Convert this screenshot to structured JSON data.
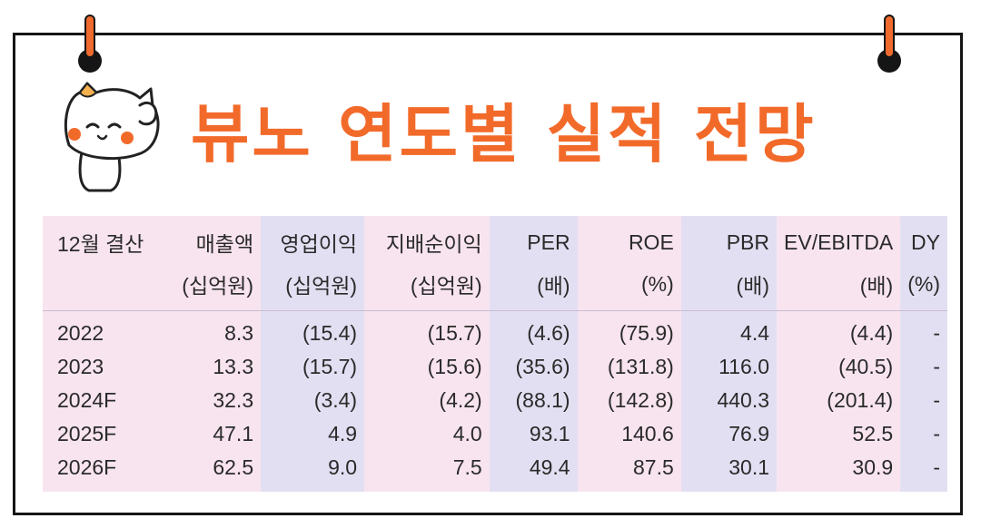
{
  "title": "뷰노 연도별 실적 전망",
  "table": {
    "header_top": [
      "12월 결산",
      "매출액",
      "영업이익",
      "지배순이익",
      "PER",
      "ROE",
      "PBR",
      "EV/EBITDA",
      "DY"
    ],
    "header_bottom": [
      "",
      "(십억원)",
      "(십억원)",
      "(십억원)",
      "(배)",
      "(%)",
      "(배)",
      "(배)",
      "(%)"
    ],
    "rows": [
      [
        "2022",
        "8.3",
        "(15.4)",
        "(15.7)",
        "(4.6)",
        "(75.9)",
        "4.4",
        "(4.4)",
        "-"
      ],
      [
        "2023",
        "13.3",
        "(15.7)",
        "(15.6)",
        "(35.6)",
        "(131.8)",
        "116.0",
        "(40.5)",
        "-"
      ],
      [
        "2024F",
        "32.3",
        "(3.4)",
        "(4.2)",
        "(88.1)",
        "(142.8)",
        "440.3",
        "(201.4)",
        "-"
      ],
      [
        "2025F",
        "47.1",
        "4.9",
        "4.0",
        "93.1",
        "140.6",
        "76.9",
        "52.5",
        "-"
      ],
      [
        "2026F",
        "62.5",
        "9.0",
        "7.5",
        "49.4",
        "87.5",
        "30.1",
        "30.9",
        "-"
      ]
    ]
  },
  "colors": {
    "accent": "#f26a2a",
    "pink_column": "#f8e4ef",
    "lavender_column": "#e3dff2",
    "border": "#151515"
  },
  "icons": [
    "cat-mascot-icon",
    "hook-left-icon",
    "hook-right-icon"
  ]
}
